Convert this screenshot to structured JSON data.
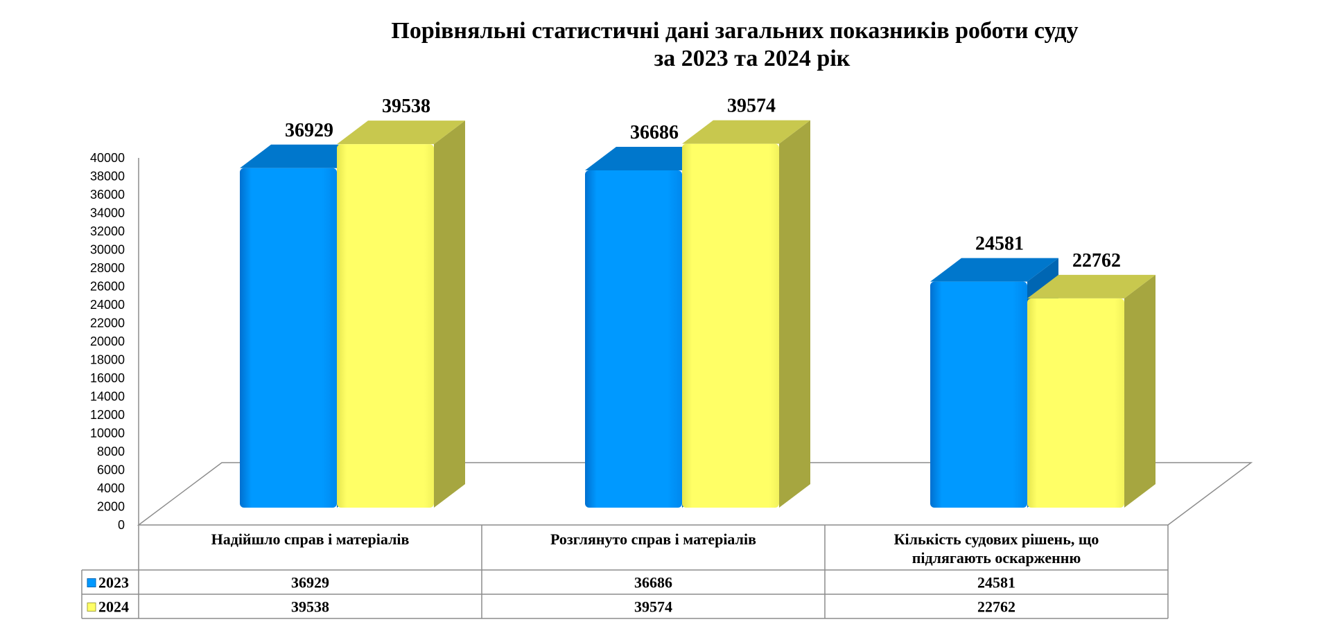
{
  "chart_data": {
    "type": "bar",
    "title_line1": "Порівняльні статистичні дані загальних показників роботи суду",
    "title_line2": "за 2023 та 2024 рік",
    "categories": [
      [
        "Надійшло справ і матеріалів"
      ],
      [
        "Розглянуто справ і матеріалів"
      ],
      [
        "Кількість судових рішень, що",
        "підлягають оскарженню"
      ]
    ],
    "series": [
      {
        "name": "2023",
        "values": [
          36929,
          36686,
          24581
        ],
        "color": "#0099FF",
        "top_color": "#0077CC",
        "side_color": "#0066B3"
      },
      {
        "name": "2024",
        "values": [
          39538,
          39574,
          22762
        ],
        "color": "#FFFF66",
        "top_color": "#C8C84E",
        "side_color": "#A6A640"
      }
    ],
    "data_labels": {
      "2023": [
        "36929",
        "36686",
        "24581"
      ],
      "2024": [
        "39538",
        "39574",
        "22762"
      ]
    },
    "ylim": [
      0,
      40000
    ],
    "ytick_step": 2000,
    "yticks": [
      "0",
      "2000",
      "4000",
      "6000",
      "8000",
      "10000",
      "12000",
      "14000",
      "16000",
      "18000",
      "20000",
      "22000",
      "24000",
      "26000",
      "28000",
      "30000",
      "32000",
      "34000",
      "36000",
      "38000",
      "40000"
    ],
    "legend_placement": "data-table",
    "grid": false
  }
}
